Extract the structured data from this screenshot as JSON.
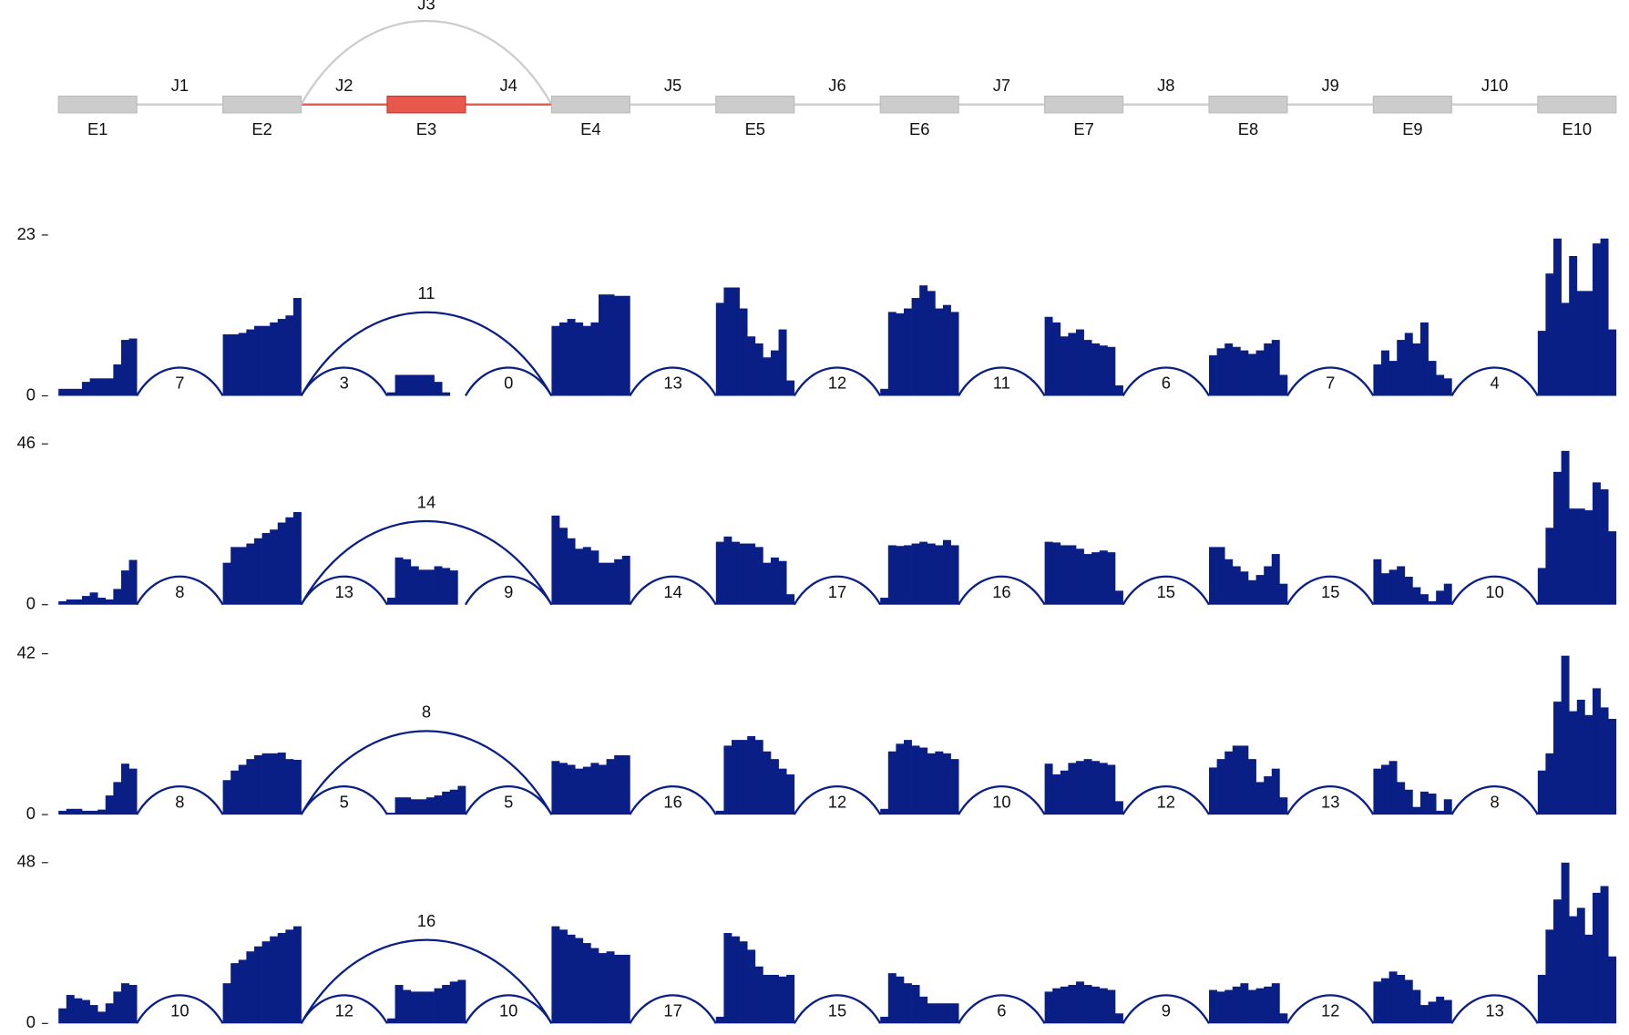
{
  "chart_data": {
    "type": "sashimi",
    "exons": [
      "E1",
      "E2",
      "E3",
      "E4",
      "E5",
      "E6",
      "E7",
      "E8",
      "E9",
      "E10"
    ],
    "junctions": [
      {
        "label": "J1",
        "from": "E1",
        "to": "E2"
      },
      {
        "label": "J2",
        "from": "E2",
        "to": "E3"
      },
      {
        "label": "J3",
        "from": "E2",
        "to": "E4"
      },
      {
        "label": "J4",
        "from": "E3",
        "to": "E4"
      },
      {
        "label": "J5",
        "from": "E4",
        "to": "E5"
      },
      {
        "label": "J6",
        "from": "E5",
        "to": "E6"
      },
      {
        "label": "J7",
        "from": "E6",
        "to": "E7"
      },
      {
        "label": "J8",
        "from": "E7",
        "to": "E8"
      },
      {
        "label": "J9",
        "from": "E8",
        "to": "E9"
      },
      {
        "label": "J10",
        "from": "E9",
        "to": "E10"
      }
    ],
    "highlight": "E3",
    "exon_color": "#cccccc",
    "highlight_color": "#e8584d",
    "coverage_color": "#0a1f86",
    "tracks": [
      {
        "ylim": [
          0,
          23
        ],
        "yticks": [
          0,
          23
        ],
        "junction_counts": [
          7,
          3,
          11,
          0,
          13,
          12,
          11,
          6,
          7,
          4
        ],
        "coverage": [
          [
            1,
            1,
            1,
            2,
            2.5,
            2.5,
            2.5,
            4.5,
            8,
            8.2
          ],
          [
            8.8,
            8.8,
            9,
            9.5,
            10,
            10,
            10.5,
            11,
            11.5,
            14
          ],
          [
            0.5,
            3,
            3,
            3,
            3,
            3,
            2,
            0.5,
            0,
            0
          ],
          [
            10,
            10.5,
            11,
            10.5,
            10,
            10.5,
            14.5,
            14.5,
            14.3,
            14.3
          ],
          [
            13.3,
            15.5,
            15.5,
            12.5,
            8.5,
            7.5,
            5.5,
            6.5,
            9.5,
            2.2
          ],
          [
            1,
            12,
            11.8,
            12.5,
            14,
            15.8,
            15,
            12.5,
            13,
            12
          ],
          [
            11.3,
            10.5,
            8.5,
            9,
            9.5,
            8,
            7.5,
            7.2,
            7,
            1.5
          ],
          [
            5.8,
            6.8,
            7.5,
            7,
            6.5,
            6,
            6.5,
            7.5,
            8,
            3
          ],
          [
            4.5,
            6.5,
            5,
            8,
            9,
            7.5,
            10.5,
            5,
            3,
            2.5
          ],
          [
            9.3,
            17.5,
            22.5,
            13.3,
            20,
            15,
            15,
            21.8,
            22.5,
            9.5
          ]
        ]
      },
      {
        "ylim": [
          0,
          46
        ],
        "yticks": [
          0,
          46
        ],
        "junction_counts": [
          8,
          13,
          14,
          9,
          14,
          17,
          16,
          15,
          15,
          10
        ],
        "coverage": [
          [
            1,
            1.5,
            1.5,
            2.5,
            3.5,
            2,
            1.5,
            4.5,
            9.8,
            12.8
          ],
          [
            12,
            16.5,
            16.5,
            17.5,
            19,
            20.5,
            21.5,
            23.5,
            25,
            26.5
          ],
          [
            2,
            13.5,
            13,
            11,
            10,
            10,
            11,
            10.5,
            9.8,
            0
          ],
          [
            25.5,
            22,
            19,
            16,
            16.5,
            15.5,
            12,
            12,
            13,
            14
          ],
          [
            18,
            19.5,
            18,
            17.5,
            17.5,
            16.5,
            12,
            13.5,
            12.5,
            3
          ],
          [
            2,
            17,
            16.8,
            17,
            17.5,
            18,
            17.5,
            17,
            18.5,
            17
          ],
          [
            18,
            17.8,
            17,
            17,
            16,
            14.5,
            15,
            15.5,
            15,
            4
          ],
          [
            16.5,
            16.5,
            13,
            11,
            9.5,
            7,
            8.5,
            11,
            14.5,
            6
          ],
          [
            13,
            9,
            10,
            11,
            8,
            5,
            3,
            1,
            4,
            6
          ],
          [
            10.5,
            22,
            38,
            44,
            27.5,
            27.5,
            27,
            35,
            33,
            21
          ]
        ]
      },
      {
        "ylim": [
          0,
          42
        ],
        "yticks": [
          0,
          42
        ],
        "junction_counts": [
          8,
          5,
          8,
          5,
          16,
          12,
          10,
          12,
          13,
          8
        ],
        "coverage": [
          [
            1,
            1.5,
            1.5,
            1,
            1,
            1.3,
            5,
            8.5,
            13.3,
            12
          ],
          [
            9,
            11.5,
            13,
            14.5,
            15.5,
            16,
            16,
            16.2,
            14.5,
            14.3
          ],
          [
            0.5,
            4.5,
            4.5,
            4,
            4,
            4.5,
            5,
            6,
            6.5,
            7.5
          ],
          [
            14,
            13.5,
            13,
            12,
            12.5,
            13.5,
            13,
            14.5,
            15.5,
            15.5
          ],
          [
            1,
            18,
            19.5,
            19.5,
            20.5,
            19.5,
            16.5,
            14.5,
            12,
            10.5
          ],
          [
            1.5,
            16.5,
            18.5,
            19.5,
            18,
            17.5,
            16,
            16.5,
            16,
            14.5
          ],
          [
            13.3,
            10.5,
            11.5,
            13.5,
            14,
            14.5,
            14,
            13.5,
            13,
            3.5
          ],
          [
            12.3,
            14.5,
            16.5,
            18,
            18,
            14.5,
            8.5,
            10,
            12,
            4.5
          ],
          [
            12,
            13,
            14,
            8.5,
            6.5,
            2,
            6,
            5.5,
            1,
            4
          ],
          [
            11.5,
            16,
            29.5,
            41.5,
            27,
            30,
            26,
            33,
            28,
            25
          ]
        ]
      },
      {
        "ylim": [
          0,
          48
        ],
        "yticks": [
          0,
          48
        ],
        "junction_counts": [
          10,
          12,
          16,
          10,
          17,
          15,
          6,
          9,
          12,
          13
        ],
        "coverage": [
          [
            4.5,
            8.5,
            7.5,
            7,
            5.5,
            3.5,
            6,
            9.5,
            12,
            11.5
          ],
          [
            12,
            18,
            19,
            21.5,
            23,
            24.5,
            26,
            27,
            28,
            29
          ],
          [
            1.5,
            11.5,
            10,
            9.5,
            9.5,
            9.5,
            10.5,
            11.5,
            12.5,
            13
          ],
          [
            29,
            28,
            26.5,
            25.5,
            24,
            22.5,
            21,
            21.5,
            20.5,
            20.5
          ],
          [
            2,
            27,
            26,
            24.5,
            22,
            17,
            14.5,
            14.5,
            14,
            14.5
          ],
          [
            2,
            15,
            14,
            12,
            11.5,
            8,
            6,
            6,
            6,
            6
          ],
          [
            9.5,
            10.5,
            11,
            11.5,
            12.5,
            11.5,
            11,
            10.5,
            10,
            3
          ],
          [
            10,
            9.5,
            10,
            11,
            12,
            10,
            10.5,
            11,
            12,
            3
          ],
          [
            12.5,
            13.5,
            15.5,
            14.5,
            13,
            10,
            5.5,
            6.5,
            8,
            7
          ],
          [
            14.5,
            28,
            37,
            48,
            32,
            34.5,
            26.5,
            39,
            41,
            20
          ]
        ]
      }
    ]
  }
}
